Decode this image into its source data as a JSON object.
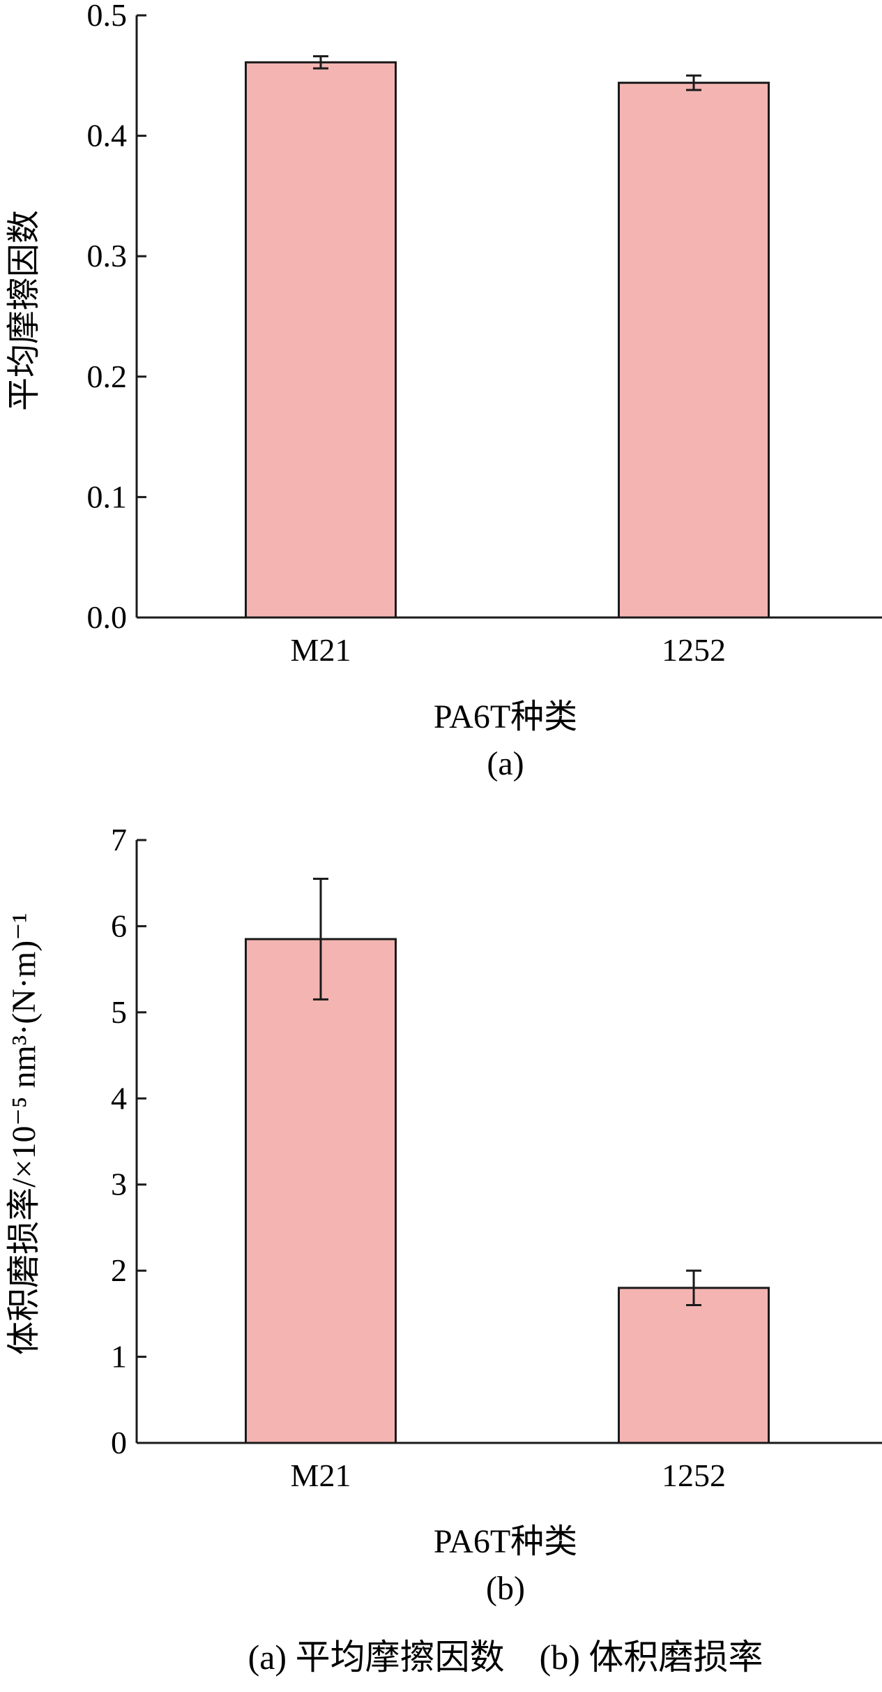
{
  "chart_data": [
    {
      "type": "bar",
      "panel_label": "(a)",
      "categories": [
        "M21",
        "1252"
      ],
      "values": [
        0.461,
        0.444
      ],
      "errors": [
        0.005,
        0.006
      ],
      "xlabel": "PA6T种类",
      "ylabel": "平均摩擦因数",
      "ylim": [
        0,
        0.5
      ],
      "yticks": [
        "0.0",
        "0.1",
        "0.2",
        "0.3",
        "0.4",
        "0.5"
      ],
      "bar_color": "#f4b5b2",
      "grid": false
    },
    {
      "type": "bar",
      "panel_label": "(b)",
      "categories": [
        "M21",
        "1252"
      ],
      "values": [
        5.85,
        1.8
      ],
      "errors": [
        0.7,
        0.2
      ],
      "xlabel": "PA6T种类",
      "ylabel": "体积磨损率/×10⁻⁵ nm³·(N·m)⁻¹",
      "ylim": [
        0,
        7
      ],
      "yticks": [
        "0",
        "1",
        "2",
        "3",
        "4",
        "5",
        "6",
        "7"
      ],
      "bar_color": "#f4b5b2",
      "grid": false
    }
  ],
  "caption": "(a) 平均摩擦因数　(b) 体积磨损率"
}
